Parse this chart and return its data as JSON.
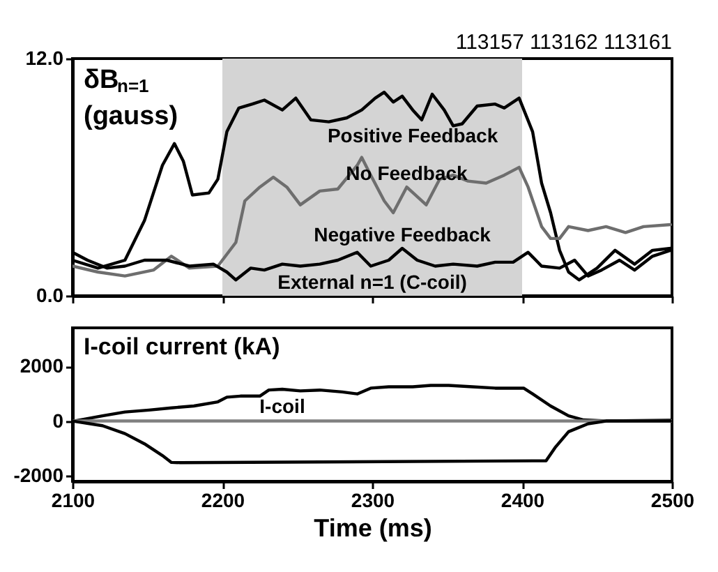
{
  "chart_data": [
    {
      "type": "line",
      "ylabel": "δB$_{n=1}$ (gauss)",
      "xlim": [
        2100,
        2500
      ],
      "ylim": [
        0,
        12
      ],
      "xticks": [
        2100,
        2200,
        2300,
        2400,
        2500
      ],
      "yticks": [
        {
          "value": 0,
          "label": "0.0"
        },
        {
          "value": 12,
          "label": "12.0"
        }
      ],
      "tick_labels": "y",
      "bands": [
        {
          "axis": "x",
          "from": 2200,
          "to": 2400,
          "color": "#d4d4d4"
        }
      ],
      "annotations": [
        "113157 113162 113161",
        "External n=1 (C-coil)"
      ],
      "series": [
        {
          "name": "Positive Feedback",
          "color": "#000000",
          "x": [
            2100,
            2117,
            2135,
            2148,
            2160,
            2168,
            2174,
            2180,
            2191,
            2197,
            2203,
            2211,
            2220,
            2228,
            2240,
            2249,
            2259,
            2271,
            2283,
            2293,
            2302,
            2308,
            2314,
            2320,
            2327,
            2333,
            2340,
            2348,
            2354,
            2360,
            2370,
            2382,
            2388,
            2398,
            2407,
            2413,
            2419,
            2425,
            2431,
            2438,
            2450,
            2462,
            2475,
            2487,
            2499
          ],
          "values": [
            1.8,
            1.4,
            1.8,
            3.8,
            6.6,
            7.7,
            6.8,
            5.1,
            5.2,
            5.9,
            8.3,
            9.5,
            9.7,
            9.9,
            9.4,
            10.0,
            8.9,
            8.8,
            9.0,
            9.4,
            10.0,
            10.3,
            9.8,
            10.1,
            9.4,
            8.9,
            10.2,
            9.4,
            8.6,
            8.7,
            9.6,
            9.7,
            9.5,
            10.0,
            8.3,
            5.7,
            4.2,
            2.3,
            1.2,
            0.8,
            1.4,
            2.3,
            1.6,
            2.3,
            2.4
          ]
        },
        {
          "name": "No Feedback",
          "color": "#6e6e6e",
          "x": [
            2100,
            2117,
            2135,
            2154,
            2166,
            2178,
            2197,
            2209,
            2215,
            2225,
            2234,
            2243,
            2252,
            2265,
            2277,
            2290,
            2293,
            2299,
            2308,
            2314,
            2323,
            2336,
            2345,
            2354,
            2364,
            2376,
            2388,
            2398,
            2404,
            2413,
            2419,
            2425,
            2431,
            2444,
            2456,
            2469,
            2481,
            2499
          ],
          "values": [
            1.5,
            1.2,
            1.0,
            1.3,
            2.0,
            1.4,
            1.5,
            2.7,
            4.8,
            5.5,
            6.0,
            5.5,
            4.6,
            5.3,
            5.4,
            6.6,
            7.0,
            6.1,
            4.8,
            4.2,
            5.5,
            4.6,
            5.9,
            6.1,
            5.8,
            5.7,
            6.1,
            6.5,
            5.5,
            3.5,
            2.9,
            2.9,
            3.5,
            3.3,
            3.5,
            3.2,
            3.5,
            3.6
          ]
        },
        {
          "name": "Negative Feedback",
          "color": "#000000",
          "x": [
            2100,
            2110,
            2123,
            2135,
            2148,
            2163,
            2178,
            2194,
            2203,
            2209,
            2219,
            2228,
            2240,
            2252,
            2265,
            2277,
            2290,
            2299,
            2311,
            2320,
            2330,
            2342,
            2354,
            2370,
            2382,
            2394,
            2404,
            2413,
            2425,
            2435,
            2444,
            2453,
            2465,
            2475,
            2487,
            2499
          ],
          "values": [
            2.2,
            1.8,
            1.4,
            1.5,
            1.8,
            1.8,
            1.5,
            1.6,
            1.2,
            0.8,
            1.4,
            1.3,
            1.6,
            1.5,
            1.6,
            1.8,
            2.2,
            1.5,
            1.8,
            2.4,
            1.8,
            1.5,
            1.6,
            1.5,
            1.7,
            1.7,
            2.2,
            1.5,
            1.4,
            1.8,
            1.0,
            1.3,
            1.8,
            1.3,
            2.0,
            2.3
          ]
        }
      ]
    },
    {
      "type": "line",
      "ylabel": "I-coil current (kA)",
      "xlabel": "Time (ms)",
      "xlim": [
        2100,
        2500
      ],
      "ylim": [
        -2200,
        3400
      ],
      "xticks": [
        2100,
        2200,
        2300,
        2400,
        2500
      ],
      "yticks": [
        -2000,
        0,
        2000
      ],
      "annotations": [
        {
          "text": "I-coil",
          "x": 2240,
          "y": 0
        }
      ],
      "series": [
        {
          "color": "#000000",
          "x": [
            2101,
            2120,
            2135,
            2151,
            2166,
            2181,
            2197,
            2203,
            2212,
            2225,
            2231,
            2240,
            2252,
            2265,
            2280,
            2290,
            2299,
            2311,
            2327,
            2339,
            2351,
            2367,
            2382,
            2401,
            2407,
            2419,
            2431,
            2441,
            2456,
            2499
          ],
          "values": [
            0,
            190,
            330,
            400,
            480,
            550,
            700,
            870,
            910,
            910,
            1130,
            1160,
            1100,
            1130,
            1060,
            990,
            1200,
            1250,
            1250,
            1300,
            1300,
            1250,
            1200,
            1200,
            990,
            550,
            190,
            40,
            0,
            30
          ]
        },
        {
          "color": "#808080",
          "x": [
            2100,
            2500
          ],
          "values": [
            0,
            0
          ]
        },
        {
          "color": "#000000",
          "x": [
            2100,
            2120,
            2135,
            2148,
            2160,
            2166,
            2172,
            2416,
            2422,
            2431,
            2444,
            2456,
            2499
          ],
          "values": [
            0,
            -170,
            -460,
            -830,
            -1260,
            -1510,
            -1520,
            -1450,
            -970,
            -390,
            -100,
            0,
            0
          ]
        }
      ]
    }
  ]
}
